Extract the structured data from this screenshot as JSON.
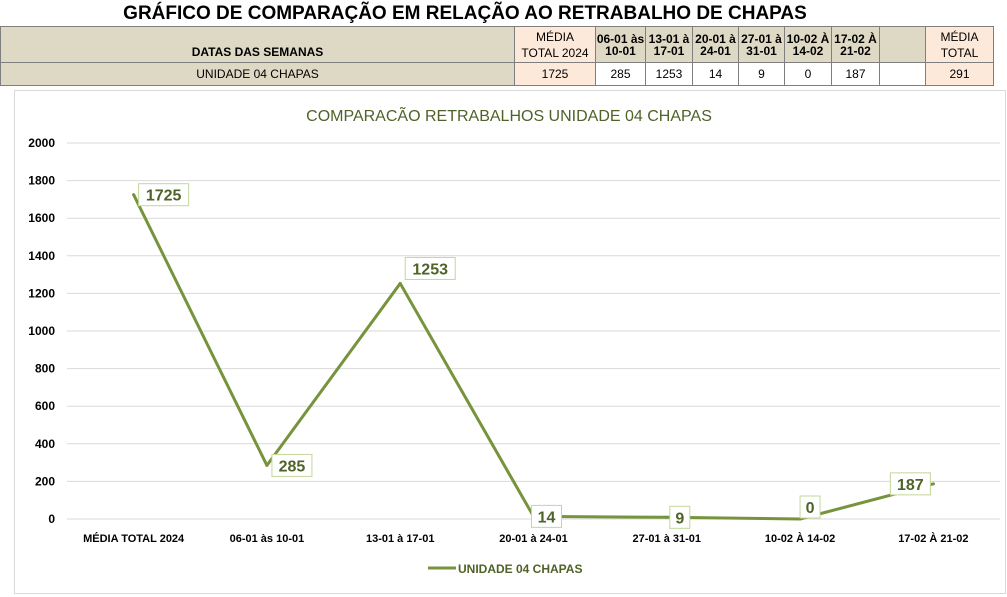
{
  "sheet": {
    "title": "GRÁFICO DE COMPARAÇÃO EM RELAÇÃO AO RETRABALHO DE CHAPAS",
    "header_label": "DATAS DAS SEMANAS",
    "col_media_line1": "MÉDIA",
    "col_media_line2": "TOTAL 2024",
    "weeks": [
      {
        "l1": "06-01 às",
        "l2": "10-01"
      },
      {
        "l1": "13-01 à",
        "l2": "17-01"
      },
      {
        "l1": "20-01 à",
        "l2": "24-01"
      },
      {
        "l1": "27-01 à",
        "l2": "31-01"
      },
      {
        "l1": "10-02 À",
        "l2": "14-02"
      },
      {
        "l1": "17-02 À",
        "l2": "21-02"
      }
    ],
    "col_total_line1": "MÉDIA",
    "col_total_line2": "TOTAL",
    "row_label": "UNIDADE 04 CHAPAS",
    "media_total_2024": "1725",
    "week_values": [
      "285",
      "1253",
      "14",
      "9",
      "0",
      "187"
    ],
    "media_total": "291"
  },
  "chart_data": {
    "type": "line",
    "title": "COMPARACÃO RETRABALHOS UNIDADE 04 CHAPAS",
    "categories": [
      "MÉDIA TOTAL 2024",
      "06-01 às 10-01",
      "13-01 à 17-01",
      "20-01 à 24-01",
      "27-01 à 31-01",
      "10-02 À 14-02",
      "17-02 À 21-02"
    ],
    "series": [
      {
        "name": "UNIDADE 04 CHAPAS",
        "values": [
          1725,
          285,
          1253,
          14,
          9,
          0,
          187
        ],
        "color": "#77933c"
      }
    ],
    "ylim": [
      0,
      2000
    ],
    "yticks": [
      0,
      200,
      400,
      600,
      800,
      1000,
      1200,
      1400,
      1600,
      1800,
      2000
    ],
    "grid": true,
    "legend": "bottom",
    "title_color": "#4f6228"
  }
}
